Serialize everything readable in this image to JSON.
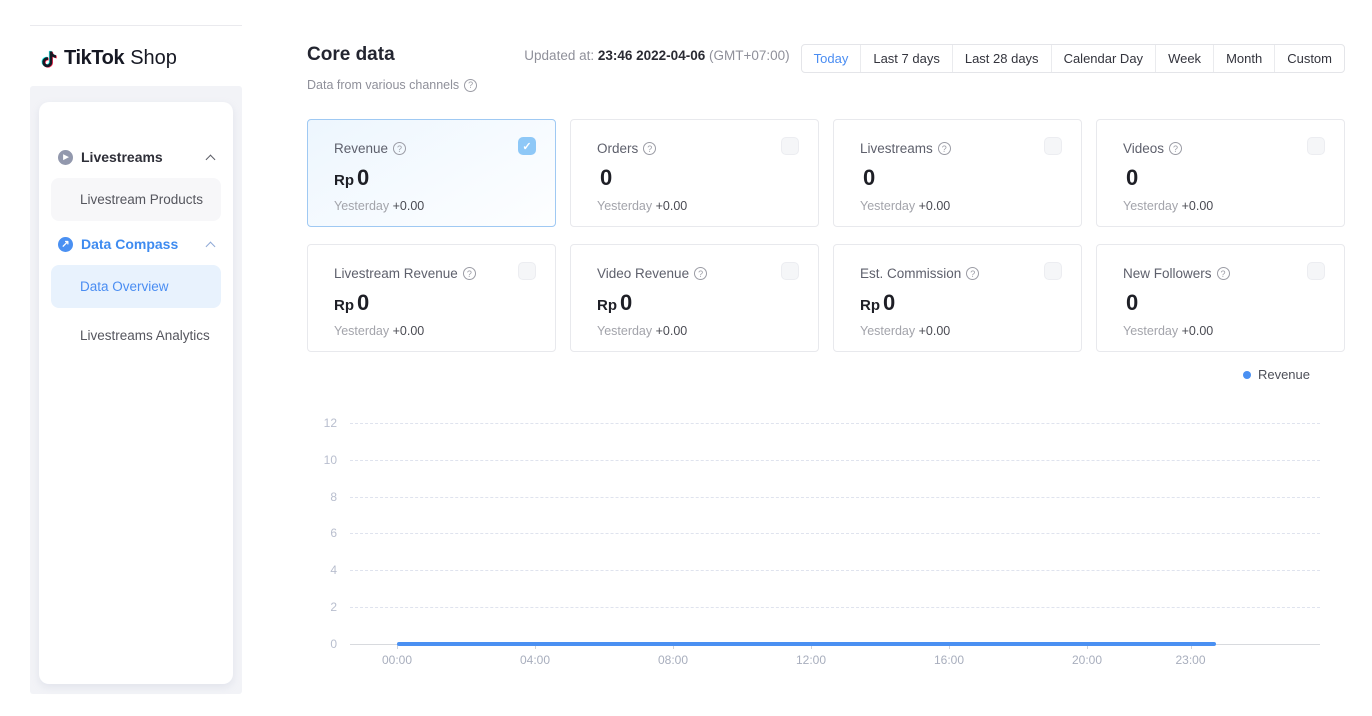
{
  "ui": {
    "help_glyph": "?",
    "check_glyph": "✓"
  },
  "colors": {
    "accent_blue": "#4a8df2",
    "line_blue": "#4a90f2",
    "checkbox_checked": "#8ec8f7",
    "selected_card_border": "#9fc9f3",
    "active_item_bg": "#e8f2fd"
  },
  "sidebar": {
    "logo": {
      "brand_bold": "TikTok",
      "brand_regular": "Shop"
    },
    "sections": [
      {
        "label": "Livestreams",
        "expanded": true,
        "children": [
          "Livestream Products"
        ]
      },
      {
        "label": "Data Compass",
        "expanded": true,
        "children": [
          "Data Overview",
          "Livestreams Analytics"
        ]
      }
    ],
    "active_item": "Data Overview"
  },
  "header": {
    "title": "Core data",
    "subtitle": "Data from various channels",
    "updated_prefix": "Updated at:",
    "updated_time": "23:46 2022-04-06",
    "updated_timezone": "(GMT+07:00)",
    "ranges": [
      "Today",
      "Last 7 days",
      "Last 28 days",
      "Calendar Day",
      "Week",
      "Month",
      "Custom"
    ],
    "active_range": "Today"
  },
  "metrics": [
    {
      "label": "Revenue",
      "prefix": "Rp",
      "value": "0",
      "yesterday": "Yesterday",
      "delta": "+0.00",
      "checked": true
    },
    {
      "label": "Orders",
      "prefix": "",
      "value": "0",
      "yesterday": "Yesterday",
      "delta": "+0.00",
      "checked": false
    },
    {
      "label": "Livestreams",
      "prefix": "",
      "value": "0",
      "yesterday": "Yesterday",
      "delta": "+0.00",
      "checked": false
    },
    {
      "label": "Videos",
      "prefix": "",
      "value": "0",
      "yesterday": "Yesterday",
      "delta": "+0.00",
      "checked": false
    },
    {
      "label": "Livestream Revenue",
      "prefix": "Rp",
      "value": "0",
      "yesterday": "Yesterday",
      "delta": "+0.00",
      "checked": false
    },
    {
      "label": "Video Revenue",
      "prefix": "Rp",
      "value": "0",
      "yesterday": "Yesterday",
      "delta": "+0.00",
      "checked": false
    },
    {
      "label": "Est. Commission",
      "prefix": "Rp",
      "value": "0",
      "yesterday": "Yesterday",
      "delta": "+0.00",
      "checked": false
    },
    {
      "label": "New Followers",
      "prefix": "",
      "value": "0",
      "yesterday": "Yesterday",
      "delta": "+0.00",
      "checked": false
    }
  ],
  "chart_data": {
    "type": "line",
    "title": "",
    "legend_position": "top-right",
    "x_ticks": [
      "00:00",
      "04:00",
      "08:00",
      "12:00",
      "16:00",
      "20:00",
      "23:00"
    ],
    "x_unit": "hour of day",
    "y_ticks": [
      0,
      2,
      4,
      6,
      8,
      10,
      12
    ],
    "ylim": [
      0,
      13
    ],
    "grid": "horizontal-dashed",
    "series": [
      {
        "name": "Revenue",
        "color": "#4a90f2",
        "x_hours": [
          0,
          23.75
        ],
        "values": [
          0,
          0
        ]
      }
    ]
  }
}
